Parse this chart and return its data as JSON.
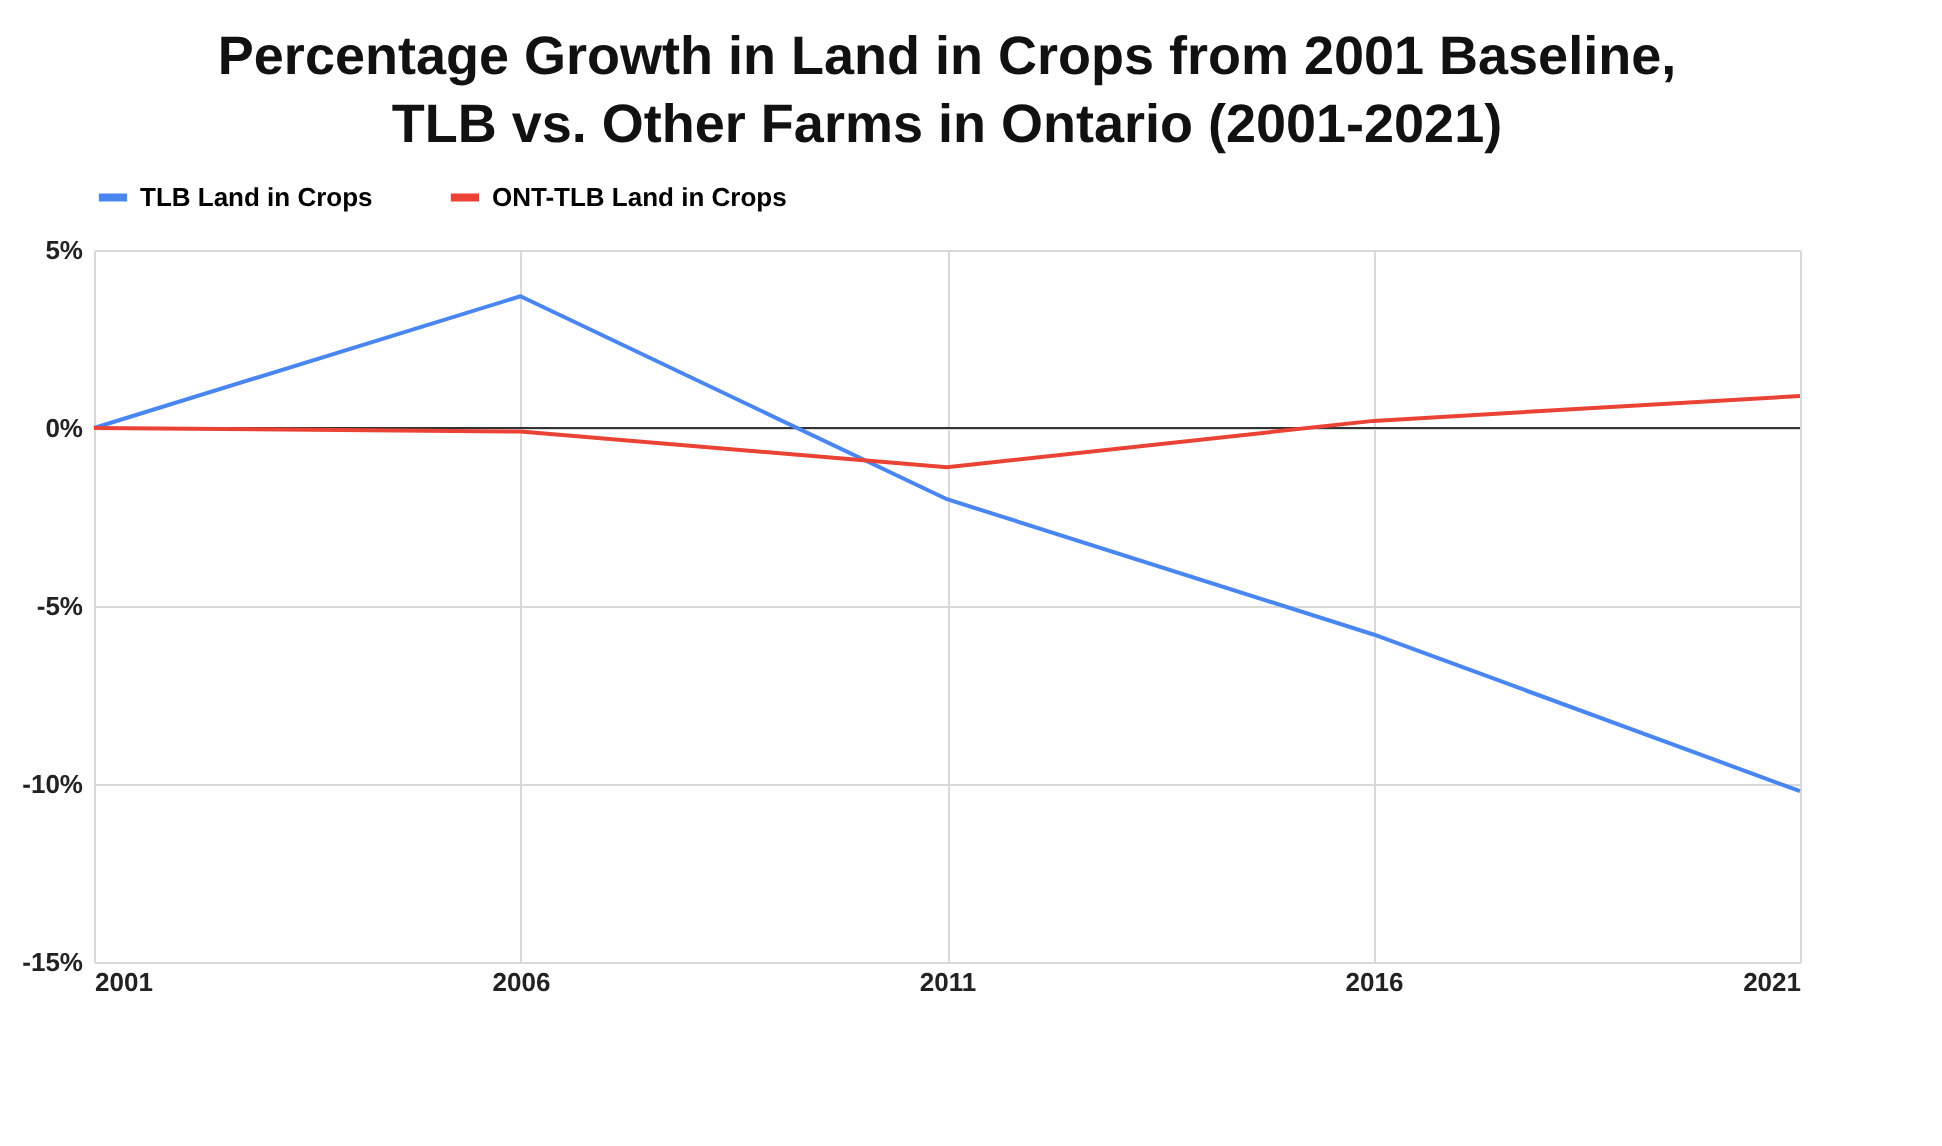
{
  "chart_data": {
    "type": "line",
    "title": "Percentage Growth in Land in Crops from 2001 Baseline, TLB vs. Other Farms in Ontario (2001-2021)",
    "x": [
      2001,
      2006,
      2011,
      2016,
      2021
    ],
    "series": [
      {
        "name": "TLB Land in Crops",
        "color": "#4a86f0",
        "values": [
          0,
          3.7,
          -2.0,
          -5.8,
          -10.2
        ]
      },
      {
        "name": "ONT-TLB Land in Crops",
        "color": "#ea4335",
        "values": [
          0,
          -0.1,
          -1.1,
          0.2,
          0.9
        ]
      }
    ],
    "xlim": [
      2001,
      2021
    ],
    "xticks": [
      2001,
      2006,
      2011,
      2016,
      2021
    ],
    "ylim": [
      -15,
      5
    ],
    "yticks": [
      {
        "value": -15,
        "label": "-15%"
      },
      {
        "value": -10,
        "label": "-10%"
      },
      {
        "value": -5,
        "label": "-5%"
      },
      {
        "value": 0,
        "label": "0%"
      },
      {
        "value": 5,
        "label": "5%"
      }
    ],
    "ref_lines": [
      {
        "axis": "y",
        "value": 0,
        "color": "#333333"
      }
    ],
    "grid": true,
    "legend": "top",
    "marker": "none",
    "line_style": "solid"
  }
}
